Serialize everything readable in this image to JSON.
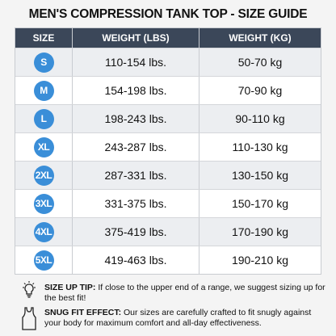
{
  "header": {
    "title": "MEN'S COMPRESSION TANK TOP - SIZE GUIDE"
  },
  "table": {
    "columns": [
      "SIZE",
      "WEIGHT (LBS)",
      "WEIGHT (KG)"
    ],
    "rows": [
      [
        "S",
        "110-154 lbs.",
        "50-70 kg"
      ],
      [
        "M",
        "154-198 lbs.",
        "70-90 kg"
      ],
      [
        "L",
        "198-243 lbs.",
        "90-110 kg"
      ],
      [
        "XL",
        "243-287 lbs.",
        "110-130 kg"
      ],
      [
        "2XL",
        "287-331 lbs.",
        "130-150 kg"
      ],
      [
        "3XL",
        "331-375 lbs.",
        "150-170 kg"
      ],
      [
        "4XL",
        "375-419 lbs.",
        "170-190 kg"
      ],
      [
        "5XL",
        "419-463 lbs.",
        "190-210 kg"
      ]
    ]
  },
  "tips": [
    {
      "label": "SIZE UP TIP:",
      "text": "If close to the upper end of a range, we suggest sizing up for the best fit!"
    },
    {
      "label": "SNUG FIT EFFECT:",
      "text": "Our sizes are carefully crafted to fit snugly against your body for maximum comfort and all-day effectiveness."
    }
  ]
}
